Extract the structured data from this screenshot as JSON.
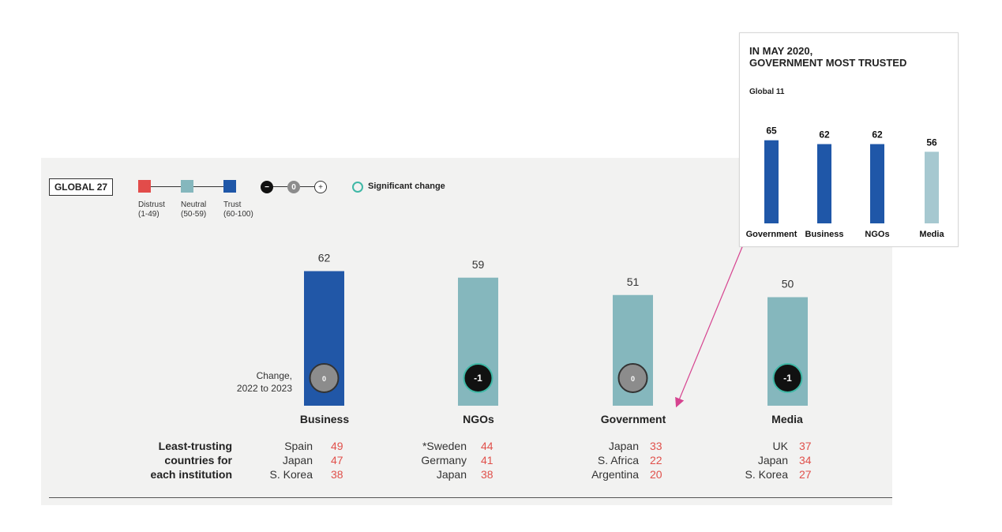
{
  "legend": {
    "global_label": "GLOBAL 27",
    "categories": [
      {
        "name": "Distrust",
        "range": "(1-49)",
        "color": "#e24c4a"
      },
      {
        "name": "Neutral",
        "range": "(50-59)",
        "color": "#85b7bd"
      },
      {
        "name": "Trust",
        "range": "(60-100)",
        "color": "#1f57a8"
      }
    ],
    "change_scale": [
      "−",
      "0",
      "+"
    ],
    "significant_change": "Significant change"
  },
  "change_label": [
    "Change,",
    "2022 to 2023"
  ],
  "least_trusting_label": [
    "Least-trusting",
    "countries for",
    "each institution"
  ],
  "chart_data": [
    {
      "type": "bar",
      "categories": [
        "Business",
        "NGOs",
        "Government",
        "Media"
      ],
      "values": [
        62,
        59,
        51,
        50
      ],
      "trust_level": [
        "trust",
        "neutral",
        "neutral",
        "neutral"
      ],
      "change": [
        "0",
        "-1",
        "0",
        "-1"
      ],
      "change_significant": [
        false,
        true,
        false,
        true
      ],
      "least_trusting": [
        [
          {
            "country": "Spain",
            "value": 49
          },
          {
            "country": "Japan",
            "value": 47
          },
          {
            "country": "S. Korea",
            "value": 38
          }
        ],
        [
          {
            "country": "*Sweden",
            "value": 44
          },
          {
            "country": "Germany",
            "value": 41
          },
          {
            "country": "Japan",
            "value": 38
          }
        ],
        [
          {
            "country": "Japan",
            "value": 33
          },
          {
            "country": "S. Africa",
            "value": 22
          },
          {
            "country": "Argentina",
            "value": 20
          }
        ],
        [
          {
            "country": "UK",
            "value": 37
          },
          {
            "country": "Japan",
            "value": 34
          },
          {
            "country": "S. Korea",
            "value": 27
          }
        ]
      ],
      "ylim": [
        0,
        100
      ],
      "grid": false
    },
    {
      "type": "bar",
      "title": "IN MAY 2020, GOVERNMENT MOST TRUSTED",
      "title_lines": [
        "IN MAY 2020,",
        "GOVERNMENT MOST TRUSTED"
      ],
      "subtitle": "Global 11",
      "categories": [
        "Government",
        "Business",
        "NGOs",
        "Media"
      ],
      "values": [
        65,
        62,
        62,
        56
      ],
      "colors": [
        "#1f57a8",
        "#1f57a8",
        "#1f57a8",
        "#a6c8d0"
      ],
      "ylim": [
        0,
        100
      ],
      "grid": false
    }
  ],
  "colors": {
    "trust": "#2157a7",
    "neutral": "#85b7bd",
    "distrust": "#e24c4a",
    "arrow": "#d6438f",
    "sig_ring": "#3fb8a6"
  }
}
